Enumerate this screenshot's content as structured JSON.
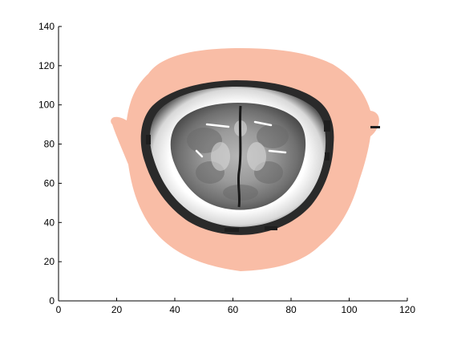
{
  "figure": {
    "background": "#ffffff",
    "axes": {
      "xlim": [
        0,
        120
      ],
      "ylim": [
        0,
        140
      ],
      "x_ticks": [
        0,
        20,
        40,
        60,
        80,
        100,
        120
      ],
      "y_ticks": [
        0,
        20,
        40,
        60,
        80,
        100,
        120,
        140
      ],
      "x_tick_labels": [
        "0",
        "20",
        "40",
        "60",
        "80",
        "100",
        "120"
      ],
      "y_tick_labels": [
        "0",
        "20",
        "40",
        "60",
        "80",
        "100",
        "120",
        "140"
      ],
      "box": false
    },
    "image": {
      "description": "axial brain MRI slice overlaid on a head-shaped region",
      "colors": {
        "head_mask": "#f9bda6",
        "skull_ring": "#ffffff",
        "brain_tissue": "#8c8c8c",
        "dark_edge": "#1a1a1a"
      }
    }
  }
}
